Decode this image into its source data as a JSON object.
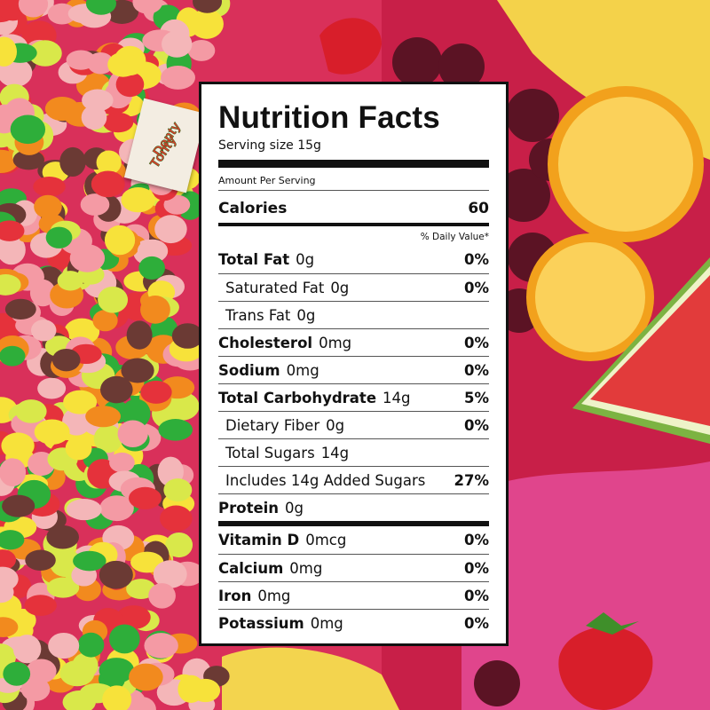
{
  "brand_tag": {
    "lines": [
      "Donty",
      "Tonty"
    ]
  },
  "label": {
    "title": "Nutrition Facts",
    "serving_size": "Serving size 15g",
    "amount_per_serving": "Amount Per Serving",
    "calories": {
      "name": "Calories",
      "value": 60
    },
    "daily_value_header": "% Daily Value*",
    "nutrients": [
      {
        "name": "Total Fat",
        "amount": "0g",
        "daily_value": "0%",
        "sub": [
          {
            "name": "Saturated Fat",
            "amount": "0g",
            "daily_value": "0%"
          },
          {
            "name": "Trans Fat",
            "amount": "0g"
          }
        ]
      },
      {
        "name": "Cholesterol",
        "amount": "0mg",
        "daily_value": "0%"
      },
      {
        "name": "Sodium",
        "amount": "0mg",
        "daily_value": "0%"
      },
      {
        "name": "Total Carbohydrate",
        "amount": "14g",
        "daily_value": "5%",
        "sub": [
          {
            "name": "Dietary Fiber",
            "amount": "0g",
            "daily_value": "0%"
          },
          {
            "name": "Total Sugars",
            "amount": "14g"
          },
          {
            "name": "Includes 14g Added Sugars",
            "daily_value": "27%"
          }
        ]
      },
      {
        "name": "Protein",
        "amount": "0g"
      }
    ],
    "vitamins_minerals": [
      {
        "name": "Vitamin D",
        "amount": "0mcg",
        "daily_value": "0%"
      },
      {
        "name": "Calcium",
        "amount": "0mg",
        "daily_value": "0%"
      },
      {
        "name": "Iron",
        "amount": "0mg",
        "daily_value": "0%"
      },
      {
        "name": "Potassium",
        "amount": "0mg",
        "daily_value": "0%"
      }
    ]
  }
}
